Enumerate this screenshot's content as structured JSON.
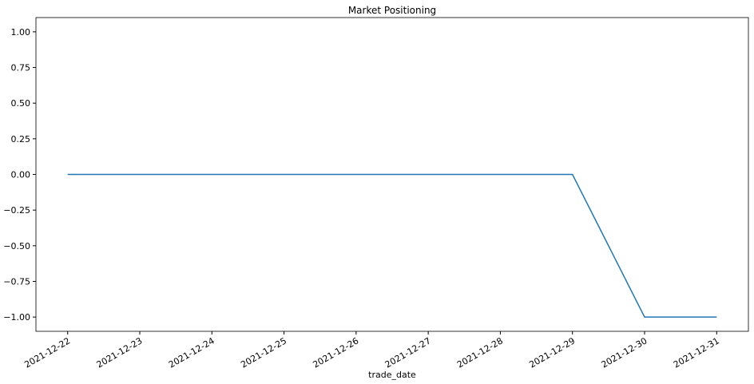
{
  "chart_data": {
    "type": "line",
    "title": "Market Positioning",
    "x_label": "trade_date",
    "x": [
      "2021-12-22",
      "2021-12-23",
      "2021-12-24",
      "2021-12-25",
      "2021-12-26",
      "2021-12-27",
      "2021-12-28",
      "2021-12-29",
      "2021-12-30",
      "2021-12-31"
    ],
    "series": [
      {
        "color": "#1f77b4",
        "values": [
          0,
          0,
          0,
          0,
          0,
          0,
          0,
          0,
          -1,
          -1
        ]
      }
    ],
    "ylim": [
      -1.1,
      1.1
    ],
    "yticks": [
      {
        "value": -1,
        "label": "−1.00"
      },
      {
        "value": -0.75,
        "label": "−0.75"
      },
      {
        "value": -0.5,
        "label": "−0.50"
      },
      {
        "value": -0.25,
        "label": "−0.25"
      },
      {
        "value": 0,
        "label": "0.00"
      },
      {
        "value": 0.25,
        "label": "0.25"
      },
      {
        "value": 0.5,
        "label": "0.50"
      },
      {
        "value": 0.75,
        "label": "0.75"
      },
      {
        "value": 1,
        "label": "1.00"
      }
    ],
    "grid": false
  }
}
